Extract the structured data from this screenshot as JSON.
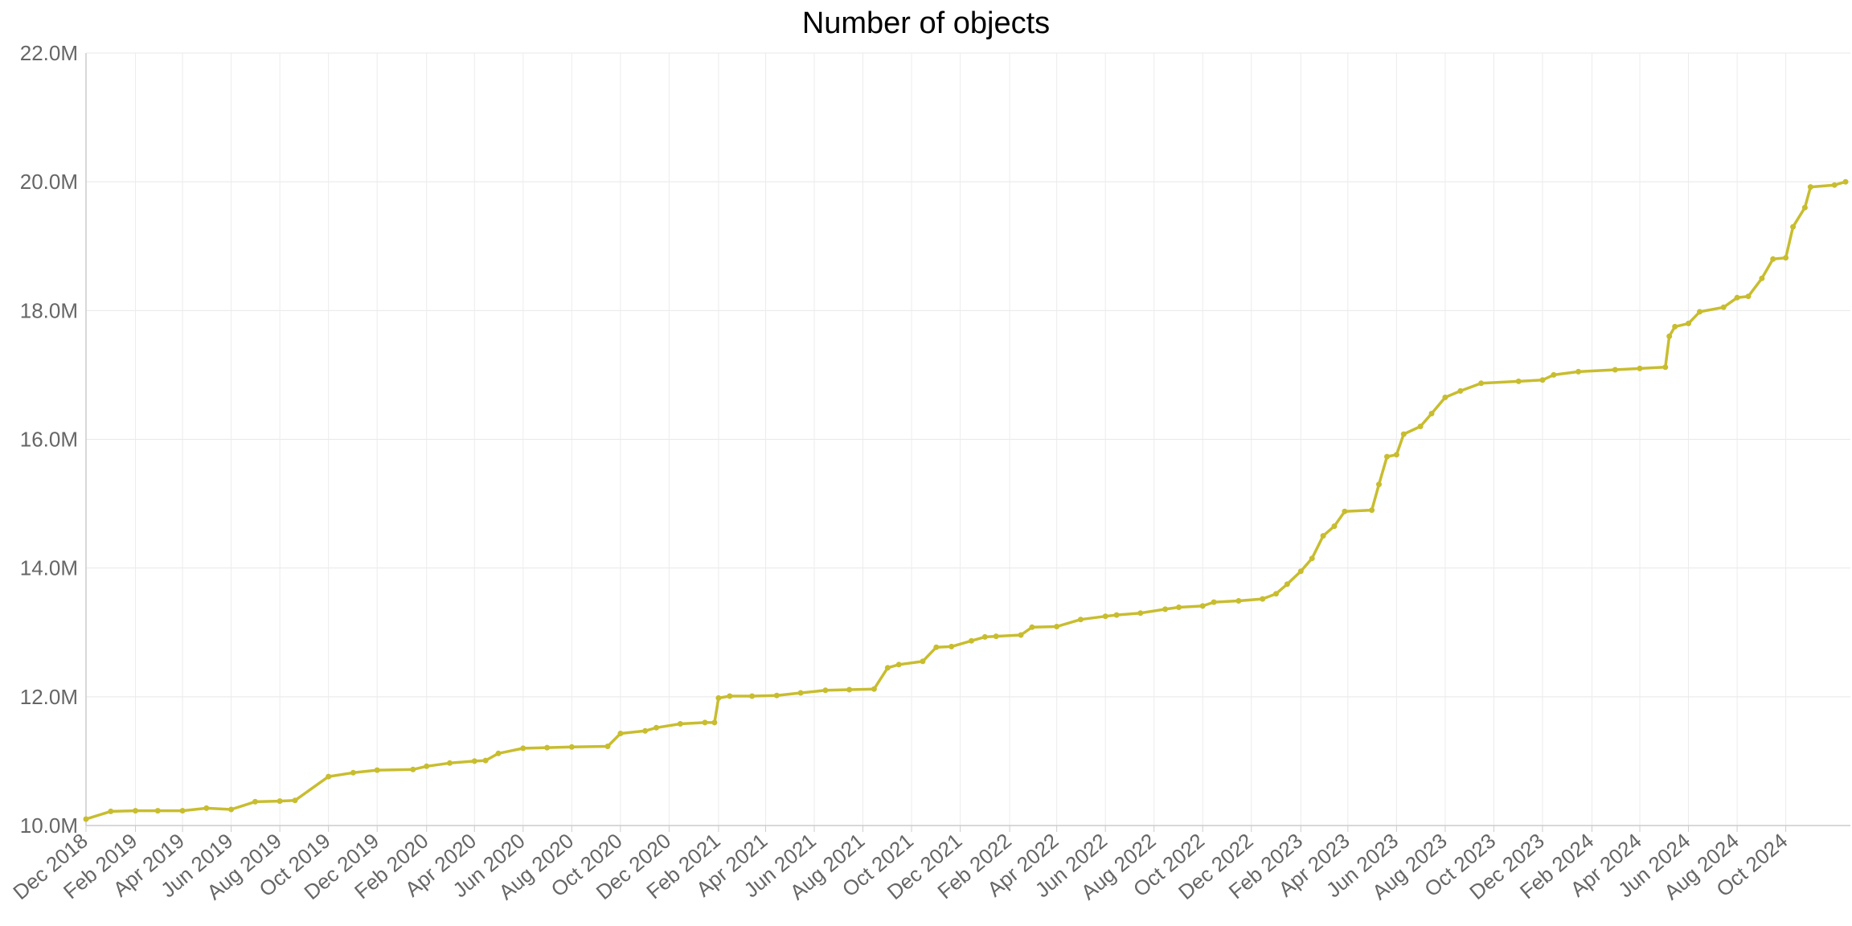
{
  "chart_data": {
    "type": "line",
    "title": "Number of objects",
    "xlabel": "",
    "ylabel": "",
    "ylim": [
      10.0,
      22.0
    ],
    "y_unit": "M",
    "xlim": [
      "2018-12-01",
      "2024-12-21"
    ],
    "grid": true,
    "legend": "none",
    "y_ticks": [
      "10.0M",
      "12.0M",
      "14.0M",
      "16.0M",
      "18.0M",
      "20.0M",
      "22.0M"
    ],
    "x_ticks": [
      "Dec 2018",
      "Feb 2019",
      "Apr 2019",
      "Jun 2019",
      "Aug 2019",
      "Oct 2019",
      "Dec 2019",
      "Feb 2020",
      "Apr 2020",
      "Jun 2020",
      "Aug 2020",
      "Oct 2020",
      "Dec 2020",
      "Feb 2021",
      "Apr 2021",
      "Jun 2021",
      "Aug 2021",
      "Oct 2021",
      "Dec 2021",
      "Feb 2022",
      "Apr 2022",
      "Jun 2022",
      "Aug 2022",
      "Oct 2022",
      "Dec 2022",
      "Feb 2023",
      "Apr 2023",
      "Jun 2023",
      "Aug 2023",
      "Oct 2023",
      "Dec 2023",
      "Feb 2024",
      "Apr 2024",
      "Jun 2024",
      "Aug 2024",
      "Oct 2024"
    ],
    "series": [
      {
        "color": "#c8bd2f",
        "points": [
          [
            "2018-12-01",
            10.1
          ],
          [
            "2019-01-01",
            10.22
          ],
          [
            "2019-02-01",
            10.23
          ],
          [
            "2019-03-01",
            10.23
          ],
          [
            "2019-04-01",
            10.23
          ],
          [
            "2019-05-01",
            10.27
          ],
          [
            "2019-06-01",
            10.25
          ],
          [
            "2019-07-01",
            10.37
          ],
          [
            "2019-08-01",
            10.38
          ],
          [
            "2019-08-20",
            10.39
          ],
          [
            "2019-10-01",
            10.76
          ],
          [
            "2019-11-01",
            10.82
          ],
          [
            "2019-12-01",
            10.86
          ],
          [
            "2020-01-15",
            10.87
          ],
          [
            "2020-02-01",
            10.92
          ],
          [
            "2020-03-01",
            10.97
          ],
          [
            "2020-04-01",
            11.0
          ],
          [
            "2020-04-15",
            11.01
          ],
          [
            "2020-05-01",
            11.12
          ],
          [
            "2020-06-01",
            11.2
          ],
          [
            "2020-07-01",
            11.21
          ],
          [
            "2020-08-01",
            11.22
          ],
          [
            "2020-09-15",
            11.23
          ],
          [
            "2020-10-01",
            11.43
          ],
          [
            "2020-11-01",
            11.47
          ],
          [
            "2020-11-15",
            11.52
          ],
          [
            "2020-12-15",
            11.58
          ],
          [
            "2021-01-15",
            11.6
          ],
          [
            "2021-01-27",
            11.6
          ],
          [
            "2021-02-01",
            11.98
          ],
          [
            "2021-02-15",
            12.01
          ],
          [
            "2021-03-15",
            12.01
          ],
          [
            "2021-04-15",
            12.02
          ],
          [
            "2021-05-15",
            12.06
          ],
          [
            "2021-06-15",
            12.1
          ],
          [
            "2021-07-15",
            12.11
          ],
          [
            "2021-08-15",
            12.12
          ],
          [
            "2021-09-01",
            12.45
          ],
          [
            "2021-09-15",
            12.5
          ],
          [
            "2021-10-15",
            12.55
          ],
          [
            "2021-11-01",
            12.77
          ],
          [
            "2021-11-20",
            12.78
          ],
          [
            "2021-12-15",
            12.87
          ],
          [
            "2022-01-01",
            12.93
          ],
          [
            "2022-01-15",
            12.94
          ],
          [
            "2022-02-15",
            12.96
          ],
          [
            "2022-03-01",
            13.08
          ],
          [
            "2022-04-01",
            13.09
          ],
          [
            "2022-05-01",
            13.2
          ],
          [
            "2022-06-01",
            13.25
          ],
          [
            "2022-06-15",
            13.27
          ],
          [
            "2022-07-15",
            13.3
          ],
          [
            "2022-08-15",
            13.36
          ],
          [
            "2022-09-01",
            13.39
          ],
          [
            "2022-10-01",
            13.41
          ],
          [
            "2022-10-15",
            13.47
          ],
          [
            "2022-11-15",
            13.49
          ],
          [
            "2022-12-15",
            13.52
          ],
          [
            "2023-01-01",
            13.6
          ],
          [
            "2023-01-15",
            13.75
          ],
          [
            "2023-02-01",
            13.95
          ],
          [
            "2023-02-15",
            14.15
          ],
          [
            "2023-03-01",
            14.5
          ],
          [
            "2023-03-15",
            14.65
          ],
          [
            "2023-03-28",
            14.88
          ],
          [
            "2023-05-01",
            14.9
          ],
          [
            "2023-05-10",
            15.3
          ],
          [
            "2023-05-20",
            15.73
          ],
          [
            "2023-06-01",
            15.76
          ],
          [
            "2023-06-10",
            16.08
          ],
          [
            "2023-07-01",
            16.2
          ],
          [
            "2023-07-15",
            16.4
          ],
          [
            "2023-08-01",
            16.65
          ],
          [
            "2023-08-20",
            16.75
          ],
          [
            "2023-09-15",
            16.87
          ],
          [
            "2023-11-01",
            16.9
          ],
          [
            "2023-12-01",
            16.92
          ],
          [
            "2023-12-15",
            17.0
          ],
          [
            "2024-01-15",
            17.05
          ],
          [
            "2024-03-01",
            17.08
          ],
          [
            "2024-04-01",
            17.1
          ],
          [
            "2024-05-03",
            17.12
          ],
          [
            "2024-05-08",
            17.6
          ],
          [
            "2024-05-15",
            17.75
          ],
          [
            "2024-06-01",
            17.8
          ],
          [
            "2024-06-15",
            17.98
          ],
          [
            "2024-07-15",
            18.05
          ],
          [
            "2024-08-01",
            18.2
          ],
          [
            "2024-08-15",
            18.22
          ],
          [
            "2024-09-01",
            18.5
          ],
          [
            "2024-09-15",
            18.8
          ],
          [
            "2024-10-01",
            18.82
          ],
          [
            "2024-10-10",
            19.3
          ],
          [
            "2024-10-25",
            19.6
          ],
          [
            "2024-11-01",
            19.92
          ],
          [
            "2024-12-01",
            19.95
          ],
          [
            "2024-12-15",
            20.0
          ]
        ]
      }
    ]
  }
}
